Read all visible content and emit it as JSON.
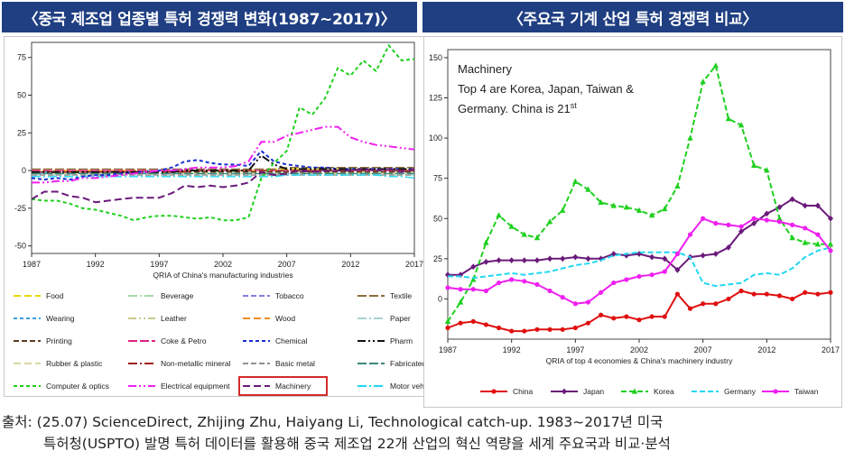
{
  "left": {
    "title": "〈중국 제조업 업종별 특허 경쟁력 변화(1987~2017)〉",
    "xlabel": "QRIA of China's manufacturing industries"
  },
  "right": {
    "title": "〈주요국 기계 산업 특허 경쟁력 비교〉",
    "xlabel": "QRIA of top 4 economies & China's machinery industry",
    "annotation": [
      "Machinery",
      "Top 4 are Korea, Japan, Taiwan &",
      "Germany. China is 21",
      "st"
    ]
  },
  "source": {
    "line1": "출처: (25.07) ScienceDirect, Zhijing Zhu, Haiyang Li, Technological catch-up. 1983~2017년 미국",
    "line2": "특허청(USPTO) 발명 특허 데이터를 활용해 중국 제조업 22개 산업의 혁신 역량을 세계 주요국과 비교·분석"
  },
  "chart_data": [
    {
      "type": "line",
      "title": "〈중국 제조업 업종별 특허 경쟁력 변화(1987~2017)〉",
      "xlabel": "QRIA of China's manufacturing industries",
      "ylabel": "",
      "xlim": [
        1987,
        2017
      ],
      "ylim": [
        -55,
        85
      ],
      "xticks": [
        1987,
        1992,
        1997,
        2002,
        2007,
        2012,
        2017
      ],
      "yticks": [
        -50,
        -25,
        0,
        25,
        50,
        75
      ],
      "x": [
        1987,
        1988,
        1989,
        1990,
        1991,
        1992,
        1993,
        1994,
        1995,
        1996,
        1997,
        1998,
        1999,
        2000,
        2001,
        2002,
        2003,
        2004,
        2005,
        2006,
        2007,
        2008,
        2009,
        2010,
        2011,
        2012,
        2013,
        2014,
        2015,
        2016,
        2017
      ],
      "highlighted": "Machinery",
      "series": [
        {
          "name": "Food",
          "color": "#e8d800",
          "values": [
            0,
            0,
            0,
            0,
            0,
            0,
            0,
            0,
            0,
            0,
            0,
            0,
            0,
            0,
            0,
            0,
            0,
            0,
            0,
            1,
            1,
            1,
            1,
            1,
            1,
            1,
            1,
            1,
            1,
            1,
            1
          ]
        },
        {
          "name": "Beverage",
          "color": "#a8d8a8",
          "values": [
            -1,
            -1,
            -1,
            -1,
            -1,
            -1,
            -1,
            -1,
            -1,
            -1,
            -1,
            -1,
            -1,
            -1,
            -1,
            -1,
            -1,
            -1,
            -1,
            -1,
            -1,
            -1,
            -1,
            -1,
            -1,
            -1,
            -1,
            -1,
            -1,
            -1,
            -1
          ]
        },
        {
          "name": "Tobacco",
          "color": "#8080e0",
          "values": [
            -2,
            -2,
            -2,
            -2,
            -2,
            -2,
            -2,
            -2,
            -2,
            -2,
            -2,
            -2,
            -2,
            -2,
            -2,
            -2,
            -2,
            -2,
            -2,
            -2,
            -2,
            -2,
            -2,
            -2,
            -2,
            -2,
            -2,
            -2,
            -2,
            -2,
            -2
          ]
        },
        {
          "name": "Textile",
          "color": "#8b6b3a",
          "values": [
            1,
            1,
            1,
            1,
            1,
            1,
            1,
            1,
            1,
            1,
            1,
            1,
            1,
            1,
            1,
            1,
            1,
            1,
            1,
            1,
            2,
            2,
            2,
            2,
            2,
            2,
            2,
            2,
            2,
            2,
            2
          ]
        },
        {
          "name": "Wearing",
          "color": "#3ba0e0",
          "values": [
            -1,
            -1,
            -1,
            -1,
            -1,
            -1,
            -1,
            -1,
            -1,
            0,
            0,
            0,
            0,
            0,
            0,
            0,
            0,
            0,
            0,
            0,
            0,
            0,
            0,
            0,
            0,
            0,
            0,
            0,
            0,
            0,
            0
          ]
        },
        {
          "name": "Leather",
          "color": "#c8c890",
          "values": [
            -2,
            -2,
            -2,
            -2,
            -2,
            -2,
            -2,
            -2,
            -2,
            -2,
            -2,
            -2,
            -2,
            -2,
            -2,
            -2,
            -2,
            -2,
            -2,
            -2,
            -2,
            -2,
            -2,
            -2,
            -2,
            -2,
            -2,
            -2,
            -2,
            -2,
            -2
          ]
        },
        {
          "name": "Wood",
          "color": "#f08c20",
          "values": [
            0,
            0,
            0,
            0,
            0,
            0,
            0,
            0,
            0,
            0,
            0,
            0,
            0,
            0,
            0,
            0,
            0,
            0,
            0,
            0,
            0,
            0,
            0,
            0,
            0,
            0,
            0,
            0,
            0,
            0,
            0
          ]
        },
        {
          "name": "Paper",
          "color": "#a8d0d0",
          "values": [
            -3,
            -3,
            -3,
            -3,
            -3,
            -3,
            -3,
            -3,
            -3,
            -3,
            -3,
            -3,
            -3,
            -3,
            -3,
            -3,
            -3,
            -3,
            -3,
            -3,
            -3,
            -3,
            -3,
            -3,
            -3,
            -3,
            -3,
            -3,
            -3,
            -3,
            -3
          ]
        },
        {
          "name": "Printing",
          "color": "#5a3a1a",
          "values": [
            -1,
            -1,
            -1,
            -1,
            -1,
            -1,
            -1,
            -1,
            -1,
            -1,
            -1,
            -1,
            -1,
            -1,
            -1,
            -1,
            -1,
            -1,
            -1,
            -1,
            -1,
            -1,
            -1,
            -1,
            -1,
            -1,
            -1,
            -1,
            -1,
            -1,
            -1
          ]
        },
        {
          "name": "Coke & Petro",
          "color": "#e02080",
          "values": [
            0,
            0,
            0,
            0,
            0,
            0,
            0,
            0,
            0,
            0,
            0,
            0,
            0,
            0,
            0,
            0,
            0,
            0,
            0,
            0,
            0,
            0,
            0,
            0,
            0,
            0,
            0,
            0,
            0,
            0,
            0
          ]
        },
        {
          "name": "Chemical",
          "color": "#1a2ed0",
          "values": [
            -5,
            -6,
            -5,
            -6,
            -4,
            -3,
            -3,
            -2,
            -1,
            -1,
            0,
            2,
            6,
            7,
            5,
            4,
            4,
            3,
            13,
            6,
            4,
            3,
            2,
            2,
            1,
            1,
            1,
            1,
            1,
            1,
            1
          ]
        },
        {
          "name": "Pharm",
          "color": "#111111",
          "values": [
            -1,
            -1,
            -1,
            -1,
            -1,
            -1,
            -1,
            -1,
            -1,
            -1,
            -1,
            -1,
            0,
            0,
            0,
            0,
            0,
            0,
            10,
            4,
            1,
            1,
            1,
            1,
            1,
            1,
            1,
            1,
            1,
            1,
            1
          ]
        },
        {
          "name": "Rubber & plastic",
          "color": "#d8d8a0",
          "values": [
            -2,
            -2,
            -2,
            -2,
            -2,
            -2,
            -2,
            -2,
            -2,
            -2,
            -2,
            -2,
            -2,
            -2,
            -2,
            -2,
            -2,
            -2,
            -2,
            -2,
            -2,
            -2,
            -2,
            -2,
            -2,
            -2,
            -2,
            -2,
            -2,
            -2,
            -2
          ]
        },
        {
          "name": "Non-metallic mineral",
          "color": "#a02020",
          "values": [
            -1,
            -1,
            -1,
            -1,
            -1,
            -1,
            -1,
            -1,
            -1,
            -1,
            -1,
            -1,
            -1,
            0,
            0,
            0,
            0,
            0,
            0,
            0,
            0,
            0,
            0,
            0,
            0,
            0,
            0,
            0,
            0,
            0,
            0
          ]
        },
        {
          "name": "Basic metal",
          "color": "#909090",
          "values": [
            -3,
            -3,
            -3,
            -3,
            -3,
            -3,
            -3,
            -3,
            -3,
            -3,
            -3,
            -3,
            -3,
            -3,
            -3,
            -3,
            -3,
            -3,
            -3,
            -3,
            -3,
            -3,
            -3,
            -3,
            -3,
            -3,
            -3,
            -3,
            -3,
            -3,
            -3
          ]
        },
        {
          "name": "Fabricated metal",
          "color": "#3a8a7a",
          "values": [
            -2,
            -2,
            -2,
            -2,
            -2,
            -2,
            -2,
            -2,
            -2,
            -2,
            -2,
            -2,
            -2,
            -2,
            -2,
            -2,
            -2,
            -2,
            -2,
            -2,
            -2,
            -2,
            -2,
            -2,
            -2,
            -2,
            -2,
            -2,
            -2,
            -2,
            -2
          ]
        },
        {
          "name": "Computer & optics",
          "color": "#1ed01e",
          "values": [
            -19,
            -20,
            -20,
            -22,
            -25,
            -26,
            -28,
            -30,
            -33,
            -31,
            -30,
            -30,
            -31,
            -32,
            -31,
            -33,
            -33,
            -31,
            -5,
            5,
            13,
            42,
            37,
            48,
            68,
            63,
            73,
            66,
            83,
            73,
            74
          ]
        },
        {
          "name": "Electrical equipment",
          "color": "#f020f0",
          "values": [
            -8,
            -8,
            -7,
            -7,
            -5,
            -5,
            -4,
            -3,
            -2,
            -1,
            0,
            0,
            1,
            2,
            2,
            2,
            3,
            6,
            19,
            19,
            23,
            25,
            27,
            29,
            29,
            22,
            19,
            17,
            16,
            15,
            14
          ]
        },
        {
          "name": "Machinery",
          "color": "#6a1a7a",
          "values": [
            -19,
            -14,
            -14,
            -17,
            -18,
            -21,
            -20,
            -19,
            -18,
            -18,
            -18,
            -15,
            -10,
            -11,
            -10,
            -11,
            -10,
            -8,
            -1,
            -3,
            -2,
            0,
            -1,
            0,
            0,
            0,
            1,
            0,
            1,
            -1,
            1
          ]
        },
        {
          "name": "Motor vehicle",
          "color": "#20d8f0",
          "values": [
            -4,
            -4,
            -4,
            -4,
            -4,
            -4,
            -4,
            -4,
            -4,
            -4,
            -4,
            -4,
            -4,
            -4,
            -4,
            -4,
            -4,
            -4,
            -4,
            -4,
            -3,
            -3,
            -3,
            -3,
            -3,
            -3,
            -3,
            -3,
            -4,
            -4,
            -5
          ]
        }
      ]
    },
    {
      "type": "line",
      "title": "〈주요국 기계 산업 특허 경쟁력 비교〉",
      "xlabel": "QRIA of top 4 economies & China's machinery industry",
      "ylabel": "",
      "xlim": [
        1987,
        2017
      ],
      "ylim": [
        -25,
        155
      ],
      "xticks": [
        1987,
        1992,
        1997,
        2002,
        2007,
        2012,
        2017
      ],
      "yticks": [
        0,
        25,
        50,
        75,
        100,
        125,
        150
      ],
      "x": [
        1987,
        1988,
        1989,
        1990,
        1991,
        1992,
        1993,
        1994,
        1995,
        1996,
        1997,
        1998,
        1999,
        2000,
        2001,
        2002,
        2003,
        2004,
        2005,
        2006,
        2007,
        2008,
        2009,
        2010,
        2011,
        2012,
        2013,
        2014,
        2015,
        2016,
        2017
      ],
      "series": [
        {
          "name": "China",
          "color": "#e01010",
          "marker": "circle",
          "values": [
            -18,
            -15,
            -14,
            -16,
            -18,
            -20,
            -20,
            -19,
            -19,
            -19,
            -18,
            -15,
            -10,
            -12,
            -11,
            -13,
            -11,
            -11,
            3,
            -6,
            -3,
            -3,
            0,
            5,
            3,
            3,
            2,
            0,
            4,
            3,
            4
          ]
        },
        {
          "name": "Japan",
          "color": "#6a1a7a",
          "marker": "diamond",
          "values": [
            15,
            15,
            20,
            23,
            24,
            24,
            24,
            24,
            25,
            25,
            26,
            25,
            25,
            28,
            27,
            28,
            26,
            25,
            18,
            26,
            27,
            28,
            32,
            42,
            47,
            53,
            57,
            62,
            58,
            58,
            50
          ]
        },
        {
          "name": "Korea",
          "color": "#1ed01e",
          "marker": "triangle",
          "values": [
            -14,
            -2,
            12,
            35,
            52,
            45,
            40,
            38,
            48,
            55,
            73,
            68,
            60,
            58,
            57,
            55,
            52,
            56,
            70,
            100,
            135,
            145,
            112,
            108,
            83,
            80,
            50,
            38,
            35,
            34,
            34
          ]
        },
        {
          "name": "Germany",
          "color": "#20d8f0",
          "marker": "none",
          "values": [
            14,
            14,
            13,
            14,
            15,
            16,
            15,
            16,
            17,
            19,
            21,
            22,
            24,
            27,
            28,
            29,
            29,
            29,
            29,
            26,
            10,
            8,
            9,
            10,
            15,
            16,
            15,
            19,
            26,
            30,
            32
          ]
        },
        {
          "name": "Taiwan",
          "color": "#f020f0",
          "marker": "circle",
          "values": [
            7,
            6,
            6,
            5,
            10,
            12,
            11,
            9,
            5,
            1,
            -3,
            -2,
            4,
            10,
            12,
            14,
            15,
            17,
            28,
            40,
            50,
            47,
            46,
            45,
            50,
            49,
            48,
            46,
            44,
            40,
            30
          ]
        }
      ]
    }
  ]
}
